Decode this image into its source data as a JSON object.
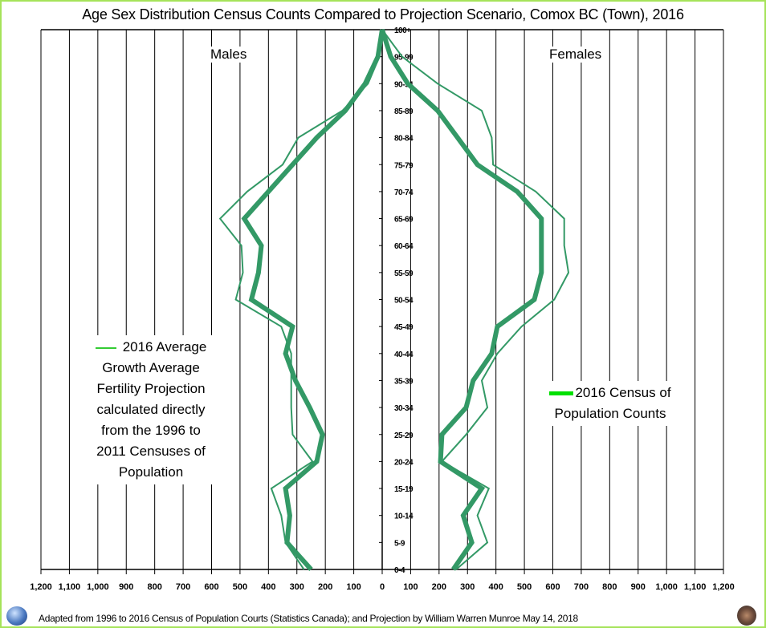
{
  "title": "Age Sex Distribution Census Counts Compared to Projection Scenario, Comox BC (Town), 2016",
  "labels": {
    "males": "Males",
    "females": "Females"
  },
  "legend": {
    "projection": "2016 Average Growth Average Fertility Projection calculated directly from the 1996 to 2011 Censuses of Population",
    "projection_lines": [
      "2016 Average",
      "Growth Average",
      "Fertility Projection",
      "calculated directly",
      "from the 1996 to",
      "2011 Censuses of",
      "Population"
    ],
    "census_lines": [
      "2016 Census of",
      "Population Counts"
    ],
    "census": "2016 Census of Population Counts"
  },
  "footer": "Adapted from 1996 to 2016 Census of Population Courts (Statistics Canada); and Projection by William Warren Munroe May 14, 2018",
  "colors": {
    "line": "#339966",
    "legend_thin": "#33cc33",
    "legend_thick": "#00e000",
    "frame": "#a6e35a"
  },
  "chart_data": {
    "type": "line",
    "subtype": "population-pyramid",
    "title": "Age Sex Distribution Census Counts Compared to Projection Scenario, Comox BC (Town), 2016",
    "xlabel": "",
    "ylabel": "",
    "x_ticks_left": [
      "1,200",
      "1,100",
      "1,000",
      "900",
      "800",
      "700",
      "600",
      "500",
      "400",
      "300",
      "200",
      "100",
      "0"
    ],
    "x_ticks_right": [
      "0",
      "100",
      "200",
      "300",
      "400",
      "500",
      "600",
      "700",
      "800",
      "900",
      "1,000",
      "1,100",
      "1,200"
    ],
    "xlim": [
      -1200,
      1200
    ],
    "grid": true,
    "categories": [
      "0-4",
      "5-9",
      "10-14",
      "15-19",
      "20-24",
      "25-29",
      "30-34",
      "35-39",
      "40-44",
      "45-49",
      "50-54",
      "55-59",
      "60-64",
      "65-69",
      "70-74",
      "75-79",
      "80-84",
      "85-89",
      "90-94",
      "95-99",
      "100+"
    ],
    "series": [
      {
        "name": "2016 Census of Population Counts - Males",
        "style": "thick",
        "values": [
          250,
          335,
          325,
          340,
          230,
          210,
          255,
          305,
          340,
          315,
          460,
          435,
          425,
          485,
          400,
          315,
          230,
          130,
          60,
          15,
          0
        ]
      },
      {
        "name": "2016 Census of Population Counts - Females",
        "style": "thick",
        "values": [
          250,
          315,
          285,
          350,
          205,
          210,
          295,
          320,
          385,
          405,
          535,
          560,
          560,
          560,
          475,
          335,
          265,
          195,
          90,
          30,
          0
        ]
      },
      {
        "name": "2016 Average Growth Average Fertility Projection - Males",
        "style": "thin",
        "values": [
          275,
          340,
          355,
          390,
          245,
          315,
          320,
          320,
          320,
          355,
          515,
          490,
          495,
          570,
          475,
          350,
          295,
          140,
          50,
          10,
          0
        ]
      },
      {
        "name": "2016 Average Growth Average Fertility Projection - Females",
        "style": "thin",
        "values": [
          260,
          370,
          335,
          375,
          210,
          295,
          370,
          350,
          405,
          490,
          605,
          655,
          640,
          640,
          540,
          390,
          385,
          350,
          195,
          70,
          0
        ]
      }
    ],
    "legend": [
      "2016 Average Growth Average Fertility Projection calculated directly from the 1996 to 2011 Censuses of Population",
      "2016 Census of Population Counts"
    ],
    "annotations": [
      "Males",
      "Females"
    ]
  }
}
